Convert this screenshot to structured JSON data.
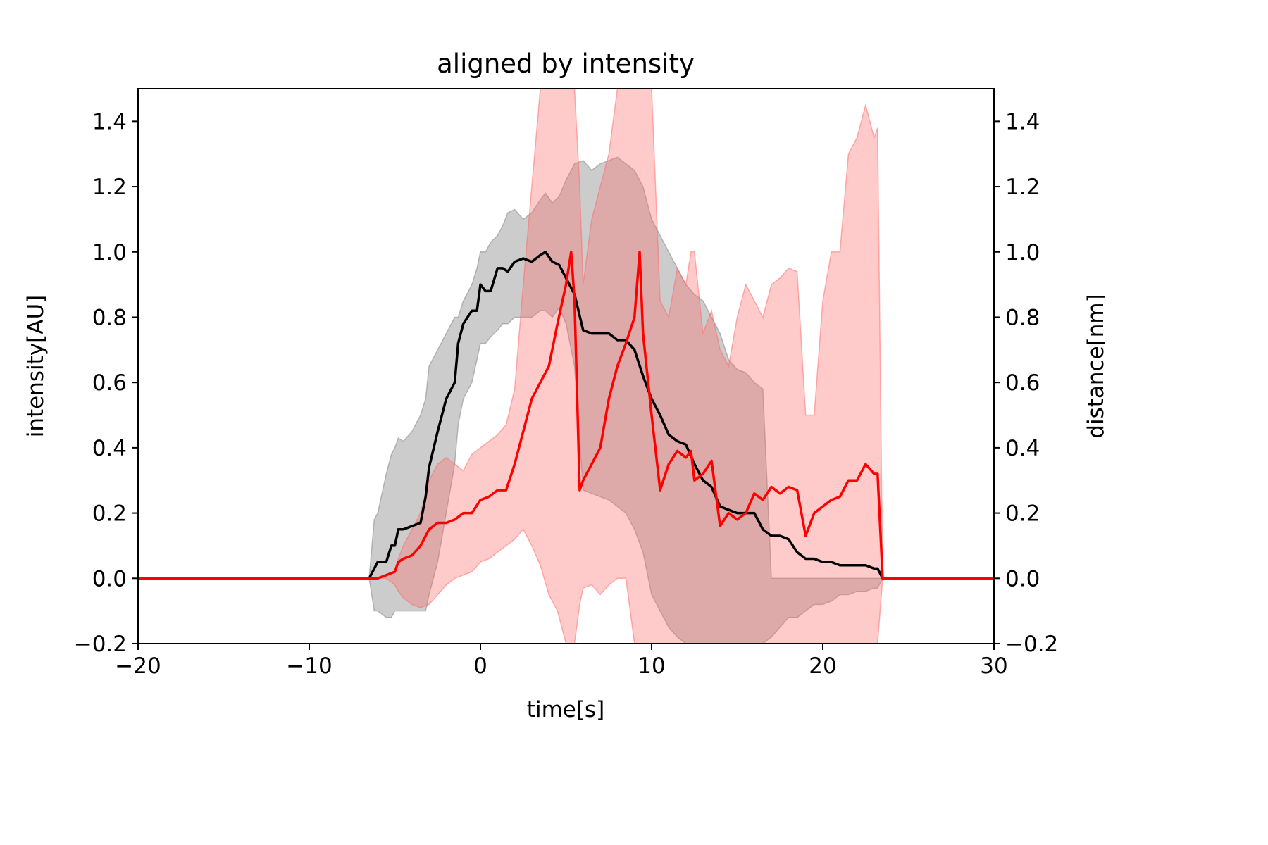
{
  "chart_data": {
    "type": "line",
    "title": "aligned by intensity",
    "xlabel": "time[s]",
    "ylabel_left": "intensity[AU]",
    "ylabel_right": "distance[nm]",
    "xlim": [
      -20,
      30
    ],
    "ylim": [
      -0.2,
      1.5
    ],
    "xticks": [
      -20,
      -10,
      0,
      10,
      20,
      30
    ],
    "xtick_labels": [
      "−20",
      "−10",
      "0",
      "10",
      "20",
      "30"
    ],
    "yticks": [
      -0.2,
      0.0,
      0.2,
      0.4,
      0.6,
      0.8,
      1.0,
      1.2,
      1.4
    ],
    "ytick_labels": [
      "−0.2",
      "0.0",
      "0.2",
      "0.4",
      "0.6",
      "0.8",
      "1.0",
      "1.2",
      "1.4"
    ],
    "grid": false,
    "series": [
      {
        "color": "#000000",
        "band_color": "#808080",
        "axis": "left",
        "x": [
          -20,
          -6.5,
          -6.2,
          -6,
          -5.5,
          -5.2,
          -5,
          -4.8,
          -4.5,
          -4,
          -3.5,
          -3.2,
          -3,
          -2.5,
          -2,
          -1.5,
          -1.3,
          -1,
          -0.5,
          -0.2,
          0,
          0.3,
          0.6,
          1,
          1.3,
          1.6,
          2,
          2.5,
          3,
          3.5,
          3.8,
          4.2,
          4.6,
          5,
          5.5,
          6,
          6.5,
          7,
          7.5,
          8,
          8.5,
          9,
          9.5,
          10,
          10.5,
          11,
          11.5,
          12,
          12.5,
          13,
          13.5,
          14,
          14.5,
          15,
          15.5,
          16,
          16.5,
          17,
          17.5,
          18,
          18.5,
          19,
          19.5,
          20,
          20.5,
          21,
          21.5,
          22,
          22.5,
          23,
          23.2,
          23.5,
          30
        ],
        "y": [
          0.0,
          0.0,
          0.03,
          0.05,
          0.05,
          0.1,
          0.1,
          0.15,
          0.15,
          0.16,
          0.17,
          0.25,
          0.34,
          0.45,
          0.55,
          0.6,
          0.72,
          0.78,
          0.82,
          0.82,
          0.9,
          0.88,
          0.88,
          0.95,
          0.95,
          0.94,
          0.97,
          0.98,
          0.97,
          0.99,
          1.0,
          0.97,
          0.96,
          0.92,
          0.87,
          0.76,
          0.75,
          0.75,
          0.75,
          0.73,
          0.73,
          0.7,
          0.62,
          0.55,
          0.5,
          0.44,
          0.42,
          0.41,
          0.35,
          0.3,
          0.28,
          0.22,
          0.21,
          0.2,
          0.2,
          0.2,
          0.15,
          0.13,
          0.13,
          0.12,
          0.08,
          0.06,
          0.06,
          0.05,
          0.05,
          0.04,
          0.04,
          0.04,
          0.04,
          0.03,
          0.03,
          0.0,
          0.0
        ],
        "band_upper": [
          0.0,
          0.0,
          0.18,
          0.2,
          0.32,
          0.38,
          0.4,
          0.43,
          0.42,
          0.45,
          0.5,
          0.55,
          0.65,
          0.7,
          0.75,
          0.8,
          0.8,
          0.85,
          0.9,
          0.95,
          1.0,
          1.0,
          1.03,
          1.05,
          1.08,
          1.12,
          1.13,
          1.1,
          1.12,
          1.16,
          1.18,
          1.15,
          1.17,
          1.22,
          1.27,
          1.28,
          1.25,
          1.27,
          1.28,
          1.29,
          1.27,
          1.25,
          1.2,
          1.1,
          1.05,
          1.0,
          0.95,
          0.9,
          0.87,
          0.85,
          0.8,
          0.75,
          0.67,
          0.64,
          0.63,
          0.6,
          0.58,
          0.0,
          0.0,
          0.0,
          0.0,
          0.0,
          0.0,
          0.0,
          0.0,
          0.0,
          0.0,
          0.0,
          0.0,
          0.0,
          0.0,
          0.0,
          0.0
        ],
        "band_lower": [
          0.0,
          0.0,
          -0.1,
          -0.1,
          -0.12,
          -0.12,
          -0.1,
          -0.1,
          -0.1,
          -0.1,
          -0.1,
          -0.1,
          -0.05,
          0.05,
          0.2,
          0.35,
          0.47,
          0.55,
          0.6,
          0.67,
          0.72,
          0.72,
          0.74,
          0.76,
          0.78,
          0.78,
          0.8,
          0.8,
          0.8,
          0.82,
          0.82,
          0.8,
          0.83,
          0.78,
          0.65,
          0.27,
          0.26,
          0.25,
          0.24,
          0.22,
          0.2,
          0.15,
          0.08,
          -0.05,
          -0.1,
          -0.15,
          -0.18,
          -0.2,
          -0.2,
          -0.2,
          -0.2,
          -0.2,
          -0.2,
          -0.2,
          -0.2,
          -0.2,
          -0.2,
          -0.18,
          -0.15,
          -0.12,
          -0.12,
          -0.1,
          -0.08,
          -0.08,
          -0.07,
          -0.05,
          -0.05,
          -0.04,
          -0.04,
          -0.03,
          -0.03,
          0.0,
          0.0
        ]
      },
      {
        "color": "#ff0000",
        "band_color": "#ff6666",
        "axis": "right",
        "x": [
          -20,
          -6.5,
          -6,
          -5.5,
          -5,
          -4.8,
          -4.5,
          -4,
          -3.5,
          -3,
          -2.5,
          -2,
          -1.5,
          -1,
          -0.5,
          0,
          0.5,
          1,
          1.5,
          2,
          2.5,
          3,
          3.5,
          4,
          4.5,
          5,
          5.3,
          5.5,
          5.8,
          6,
          6.5,
          7,
          7.5,
          8,
          8.5,
          9,
          9.3,
          9.5,
          10,
          10.5,
          11,
          11.5,
          12,
          12.3,
          12.5,
          13,
          13.5,
          14,
          14.5,
          15,
          15.5,
          16,
          16.5,
          17,
          17.5,
          18,
          18.5,
          19,
          19.5,
          20,
          20.5,
          21,
          21.5,
          22,
          22.5,
          23,
          23.2,
          23.5,
          30
        ],
        "y": [
          0.0,
          0.0,
          0.0,
          0.01,
          0.02,
          0.05,
          0.06,
          0.07,
          0.1,
          0.15,
          0.17,
          0.17,
          0.18,
          0.2,
          0.2,
          0.24,
          0.25,
          0.27,
          0.27,
          0.35,
          0.45,
          0.55,
          0.6,
          0.65,
          0.78,
          0.9,
          1.0,
          0.85,
          0.27,
          0.3,
          0.35,
          0.4,
          0.55,
          0.65,
          0.72,
          0.8,
          1.0,
          0.75,
          0.5,
          0.27,
          0.35,
          0.39,
          0.37,
          0.39,
          0.3,
          0.32,
          0.36,
          0.16,
          0.2,
          0.18,
          0.2,
          0.26,
          0.24,
          0.28,
          0.26,
          0.28,
          0.27,
          0.13,
          0.2,
          0.22,
          0.24,
          0.25,
          0.3,
          0.3,
          0.35,
          0.32,
          0.32,
          0.0,
          0.0
        ],
        "band_upper": [
          0.0,
          0.0,
          0.0,
          0.01,
          0.02,
          0.06,
          0.1,
          0.15,
          0.2,
          0.3,
          0.35,
          0.37,
          0.35,
          0.33,
          0.38,
          0.4,
          0.42,
          0.44,
          0.47,
          0.58,
          0.9,
          1.2,
          1.5,
          1.5,
          1.5,
          1.5,
          1.5,
          1.5,
          1.2,
          0.9,
          1.1,
          1.2,
          1.3,
          1.5,
          1.5,
          1.5,
          1.5,
          1.5,
          1.5,
          0.85,
          0.8,
          0.95,
          0.9,
          1.0,
          1.0,
          0.75,
          0.82,
          0.7,
          0.65,
          0.8,
          0.9,
          0.85,
          0.8,
          0.9,
          0.92,
          0.95,
          0.94,
          0.5,
          0.5,
          0.85,
          1.0,
          1.0,
          1.3,
          1.35,
          1.45,
          1.35,
          1.38,
          0.0,
          0.0
        ],
        "band_lower": [
          0.0,
          0.0,
          0.0,
          0.0,
          -0.02,
          -0.04,
          -0.06,
          -0.08,
          -0.09,
          -0.08,
          -0.05,
          -0.02,
          0.0,
          0.01,
          0.02,
          0.05,
          0.06,
          0.08,
          0.1,
          0.12,
          0.15,
          0.1,
          0.04,
          -0.05,
          -0.1,
          -0.2,
          -0.2,
          -0.2,
          -0.08,
          -0.03,
          -0.02,
          -0.05,
          -0.02,
          0.0,
          0.0,
          -0.2,
          -0.2,
          -0.2,
          -0.2,
          -0.2,
          -0.2,
          -0.2,
          -0.2,
          -0.2,
          -0.2,
          -0.2,
          -0.2,
          -0.2,
          -0.2,
          -0.2,
          -0.2,
          -0.2,
          -0.2,
          -0.2,
          -0.2,
          -0.2,
          -0.2,
          -0.2,
          -0.2,
          -0.2,
          -0.2,
          -0.2,
          -0.2,
          -0.2,
          -0.2,
          -0.2,
          -0.2,
          0.0,
          0.0
        ]
      }
    ]
  }
}
